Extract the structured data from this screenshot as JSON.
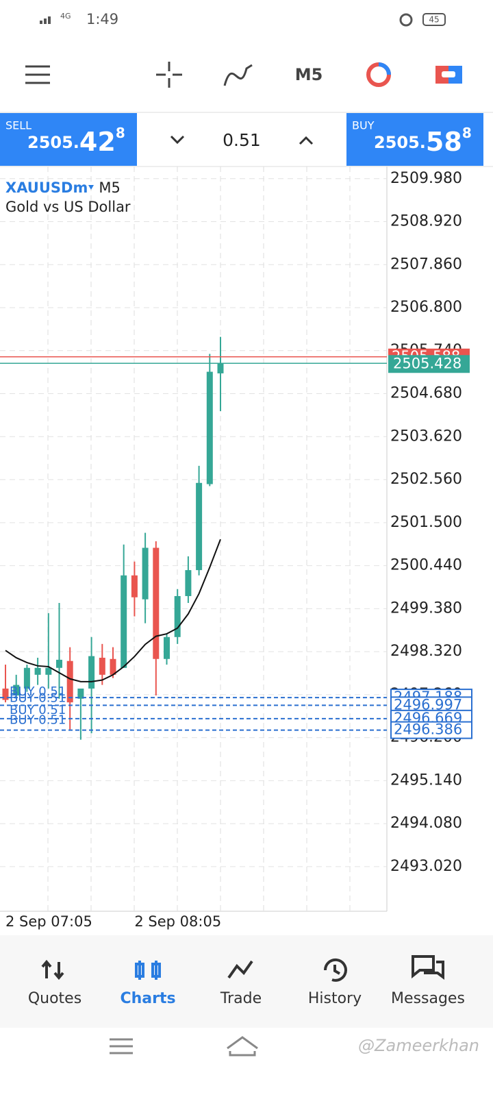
{
  "status_bar": {
    "time": "1:49",
    "battery": "45"
  },
  "toolbar": {
    "timeframe": "M5"
  },
  "trade_panel": {
    "sell": {
      "label": "SELL",
      "price_main": "2505.",
      "price_big": "42",
      "price_sup": "8"
    },
    "volume": "0.51",
    "buy": {
      "label": "BUY",
      "price_main": "2505.",
      "price_big": "58",
      "price_sup": "8"
    }
  },
  "chart_data": {
    "type": "candlestick",
    "symbol": "XAUUSDm",
    "timeframe": "M5",
    "description": "Gold vs US Dollar",
    "categories": [
      "2 Sep 07:05",
      null,
      null,
      null,
      null,
      null,
      null,
      null,
      null,
      null,
      null,
      null,
      "2 Sep 08:05",
      null,
      null,
      null,
      null,
      null,
      null,
      null,
      null
    ],
    "open": [
      2497.41,
      2497.24,
      2497.41,
      2497.75,
      2497.75,
      2497.92,
      2498.09,
      2497.16,
      2497.41,
      2498.17,
      2498.14,
      2497.92,
      2500.2,
      2499.61,
      2500.88,
      2498.14,
      2498.68,
      2499.69,
      2500.33,
      2502.45,
      2505.18
    ],
    "high": [
      2498.0,
      2497.75,
      2498.0,
      2498.17,
      2499.27,
      2499.52,
      2498.43,
      2497.41,
      2498.68,
      2498.51,
      2498.43,
      2500.96,
      2500.54,
      2501.25,
      2501.04,
      2498.76,
      2499.86,
      2500.67,
      2502.9,
      2505.66,
      2506.08
    ],
    "low": [
      2497.07,
      2497.16,
      2497.33,
      2497.5,
      2497.41,
      2497.16,
      2496.4,
      2496.15,
      2496.31,
      2497.5,
      2497.67,
      2497.92,
      2499.19,
      2499.02,
      2497.24,
      2498.0,
      2498.51,
      2499.52,
      2500.2,
      2502.4,
      2504.25
    ],
    "close": [
      2497.13,
      2497.5,
      2497.92,
      2497.92,
      2497.92,
      2498.12,
      2497.07,
      2497.41,
      2498.21,
      2497.75,
      2497.75,
      2500.2,
      2499.66,
      2500.88,
      2498.14,
      2498.68,
      2499.69,
      2500.33,
      2502.48,
      2505.22,
      2505.43
    ],
    "ma": [
      2498.35,
      2498.17,
      2498.05,
      2497.97,
      2497.95,
      2497.8,
      2497.65,
      2497.58,
      2497.58,
      2497.62,
      2497.75,
      2497.95,
      2498.2,
      2498.5,
      2498.7,
      2498.76,
      2498.9,
      2499.25,
      2499.75,
      2500.4,
      2501.09
    ],
    "up_color": "#35a796",
    "down_color": "#e9554f",
    "ma_color": "#111111",
    "ylim": [
      2491.92,
      2510.28
    ],
    "yticks": [
      {
        "value": 2509.98,
        "label": "2509.980"
      },
      {
        "value": 2508.92,
        "label": "2508.920"
      },
      {
        "value": 2507.86,
        "label": "2507.860"
      },
      {
        "value": 2506.8,
        "label": "2506.800"
      },
      {
        "value": 2505.74,
        "label": "2505.740"
      },
      {
        "value": 2504.68,
        "label": "2504.680"
      },
      {
        "value": 2503.62,
        "label": "2503.620"
      },
      {
        "value": 2502.56,
        "label": "2502.560"
      },
      {
        "value": 2501.5,
        "label": "2501.500"
      },
      {
        "value": 2500.44,
        "label": "2500.440"
      },
      {
        "value": 2499.38,
        "label": "2499.380"
      },
      {
        "value": 2498.32,
        "label": "2498.320"
      },
      {
        "value": 2497.26,
        "label": "2497.260"
      },
      {
        "value": 2496.2,
        "label": "2496.200"
      },
      {
        "value": 2495.14,
        "label": "2495.140"
      },
      {
        "value": 2494.08,
        "label": "2494.080"
      },
      {
        "value": 2493.02,
        "label": "2493.020"
      }
    ],
    "grid": true,
    "ask": 2505.588,
    "ask_color": "#e9554f",
    "bid": 2505.428,
    "bid_color": "#35a796",
    "orders": [
      {
        "label": "BUY 0.51",
        "price": 2497.188
      },
      {
        "label": "BUY 0.51",
        "price": 2496.997
      },
      {
        "label": "BUY 0.51",
        "price": 2496.669
      },
      {
        "label": "BUY 0.51",
        "price": 2496.386
      }
    ],
    "order_color": "#2a6fd0"
  },
  "nav": {
    "items": [
      "Quotes",
      "Charts",
      "Trade",
      "History",
      "Messages"
    ],
    "active": 1
  },
  "watermark": "@Zameerkhan"
}
